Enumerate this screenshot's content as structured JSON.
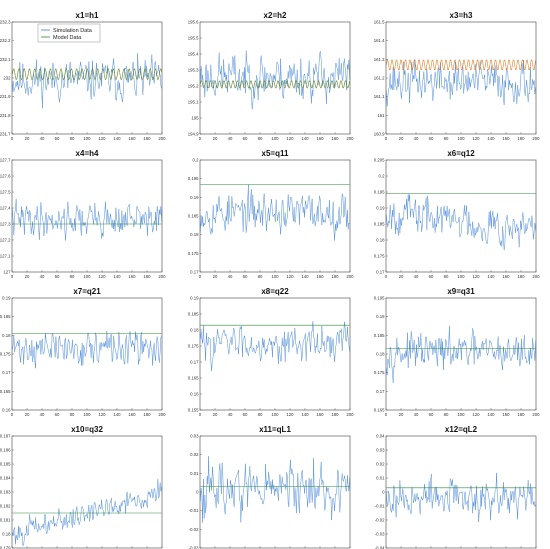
{
  "legend": {
    "entries": [
      {
        "label": "Simulation Data",
        "color": "#3b7fd4"
      },
      {
        "label": "Model Data",
        "color": "#2e8b3a"
      }
    ]
  },
  "colors": {
    "simulation": "#3b7fd4",
    "model": "#2e8b3a",
    "model_alt": "#e07a1f",
    "axis": "#444444"
  },
  "chart_data": [
    {
      "type": "line",
      "title": "x1=h1",
      "xlabel": "",
      "ylabel": "",
      "xlim": [
        0,
        200
      ],
      "ylim": [
        231.7,
        232.3
      ],
      "x_ticks": [
        0,
        20,
        40,
        60,
        80,
        100,
        120,
        140,
        160,
        180,
        200
      ],
      "y_ticks": [
        231.7,
        231.8,
        231.9,
        232,
        232.1,
        232.2,
        232.3
      ],
      "y_tick_labels": [
        "231.7",
        "231.8",
        "231.9",
        "232",
        "232.1",
        "232.2",
        "232.3"
      ],
      "grid": false,
      "legend_position": "top-left",
      "series": [
        {
          "name": "Simulation Data",
          "kind": "noise",
          "center": 231.99,
          "spread": 0.09,
          "seed": 11,
          "points": 200
        },
        {
          "name": "Model Data",
          "kind": "oscillation",
          "center": 232.02,
          "amplitude": 0.03,
          "period": 7,
          "points": 200
        }
      ]
    },
    {
      "type": "line",
      "title": "x2=h2",
      "xlabel": "",
      "ylabel": "",
      "xlim": [
        0,
        200
      ],
      "ylim": [
        194.9,
        195.6
      ],
      "x_ticks": [
        0,
        20,
        40,
        60,
        80,
        100,
        120,
        140,
        160,
        180,
        200
      ],
      "y_ticks": [
        194.9,
        195,
        195.1,
        195.2,
        195.3,
        195.4,
        195.5,
        195.6
      ],
      "y_tick_labels": [
        "194.9",
        "195",
        "195.1",
        "195.2",
        "195.3",
        "195.4",
        "195.5",
        "195.6"
      ],
      "grid": false,
      "legend_position": "none",
      "series": [
        {
          "name": "Simulation Data",
          "kind": "noise",
          "center": 195.26,
          "spread": 0.12,
          "seed": 23,
          "points": 200
        },
        {
          "name": "Model Data",
          "kind": "oscillation",
          "center": 195.21,
          "amplitude": 0.025,
          "period": 6,
          "points": 200
        }
      ]
    },
    {
      "type": "line",
      "title": "x3=h3",
      "xlabel": "",
      "ylabel": "",
      "xlim": [
        0,
        200
      ],
      "ylim": [
        160.9,
        161.5
      ],
      "x_ticks": [
        0,
        20,
        40,
        60,
        80,
        100,
        120,
        140,
        160,
        180,
        200
      ],
      "y_ticks": [
        160.9,
        161,
        161.1,
        161.2,
        161.3,
        161.4,
        161.5
      ],
      "y_tick_labels": [
        "160.9",
        "161",
        "161.1",
        "161.2",
        "161.3",
        "161.4",
        "161.5"
      ],
      "grid": false,
      "legend_position": "none",
      "series": [
        {
          "name": "Simulation Data",
          "kind": "noise",
          "center": 161.18,
          "spread": 0.09,
          "seed": 37,
          "points": 200
        },
        {
          "name": "Model Data",
          "kind": "oscillation",
          "center": 161.27,
          "amplitude": 0.03,
          "period": 6,
          "points": 200,
          "alt_color": true
        }
      ]
    },
    {
      "type": "line",
      "title": "x4=h4",
      "xlabel": "",
      "ylabel": "",
      "xlim": [
        0,
        200
      ],
      "ylim": [
        127,
        127.7
      ],
      "x_ticks": [
        0,
        20,
        40,
        60,
        80,
        100,
        120,
        140,
        160,
        180,
        200
      ],
      "y_ticks": [
        127,
        127.1,
        127.2,
        127.3,
        127.4,
        127.5,
        127.6,
        127.7
      ],
      "y_tick_labels": [
        "127",
        "127.1",
        "127.2",
        "127.3",
        "127.4",
        "127.5",
        "127.6",
        "127.7"
      ],
      "grid": false,
      "legend_position": "none",
      "series": [
        {
          "name": "Simulation Data",
          "kind": "noise",
          "center": 127.33,
          "spread": 0.09,
          "seed": 41,
          "points": 200
        },
        {
          "name": "Model Data",
          "kind": "flat",
          "value": 127.3,
          "points": 200
        }
      ]
    },
    {
      "type": "line",
      "title": "x5=q11",
      "xlabel": "",
      "ylabel": "",
      "xlim": [
        0,
        200
      ],
      "ylim": [
        0.17,
        0.2
      ],
      "x_ticks": [
        0,
        20,
        40,
        60,
        80,
        100,
        120,
        140,
        160,
        180,
        200
      ],
      "y_ticks": [
        0.17,
        0.175,
        0.18,
        0.185,
        0.19,
        0.195,
        0.2
      ],
      "y_tick_labels": [
        "0.17",
        "0.175",
        "0.18",
        "0.185",
        "0.19",
        "0.195",
        "0.2"
      ],
      "grid": false,
      "legend_position": "none",
      "series": [
        {
          "name": "Simulation Data",
          "kind": "noise",
          "center": 0.186,
          "spread": 0.0045,
          "seed": 53,
          "points": 200
        },
        {
          "name": "Model Data",
          "kind": "flat",
          "value": 0.1935,
          "points": 200
        }
      ]
    },
    {
      "type": "line",
      "title": "x6=q12",
      "xlabel": "",
      "ylabel": "",
      "xlim": [
        0,
        200
      ],
      "ylim": [
        0.17,
        0.205
      ],
      "x_ticks": [
        0,
        20,
        40,
        60,
        80,
        100,
        120,
        140,
        160,
        180,
        200
      ],
      "y_ticks": [
        0.17,
        0.175,
        0.18,
        0.185,
        0.19,
        0.195,
        0.2,
        0.205
      ],
      "y_tick_labels": [
        "0.17",
        "0.175",
        "0.18",
        "0.185",
        "0.19",
        "0.195",
        "0.2",
        "0.205"
      ],
      "grid": false,
      "legend_position": "none",
      "series": [
        {
          "name": "Simulation Data",
          "kind": "noise",
          "center": 0.186,
          "spread": 0.005,
          "seed": 67,
          "points": 200,
          "trend": -0.006
        },
        {
          "name": "Model Data",
          "kind": "flat",
          "value": 0.1945,
          "points": 200
        }
      ]
    },
    {
      "type": "line",
      "title": "x7=q21",
      "xlabel": "",
      "ylabel": "",
      "xlim": [
        0,
        200
      ],
      "ylim": [
        0.16,
        0.19
      ],
      "x_ticks": [
        0,
        20,
        40,
        60,
        80,
        100,
        120,
        140,
        160,
        180,
        200
      ],
      "y_ticks": [
        0.16,
        0.165,
        0.17,
        0.175,
        0.18,
        0.185,
        0.19
      ],
      "y_tick_labels": [
        "0.16",
        "0.165",
        "0.17",
        "0.175",
        "0.18",
        "0.185",
        "0.19"
      ],
      "grid": false,
      "legend_position": "none",
      "series": [
        {
          "name": "Simulation Data",
          "kind": "noise",
          "center": 0.1765,
          "spread": 0.0038,
          "seed": 71,
          "points": 200
        },
        {
          "name": "Model Data",
          "kind": "flat",
          "value": 0.1805,
          "points": 200
        }
      ]
    },
    {
      "type": "line",
      "title": "x8=q22",
      "xlabel": "",
      "ylabel": "",
      "xlim": [
        0,
        200
      ],
      "ylim": [
        0.155,
        0.19
      ],
      "x_ticks": [
        0,
        20,
        40,
        60,
        80,
        100,
        120,
        140,
        160,
        180,
        200
      ],
      "y_ticks": [
        0.155,
        0.16,
        0.165,
        0.17,
        0.175,
        0.18,
        0.185,
        0.19
      ],
      "y_tick_labels": [
        "0.155",
        "0.16",
        "0.165",
        "0.17",
        "0.175",
        "0.18",
        "0.185",
        "0.19"
      ],
      "grid": false,
      "legend_position": "none",
      "series": [
        {
          "name": "Simulation Data",
          "kind": "noise",
          "center": 0.176,
          "spread": 0.0045,
          "seed": 83,
          "points": 200
        },
        {
          "name": "Model Data",
          "kind": "flat",
          "value": 0.1815,
          "points": 200
        }
      ]
    },
    {
      "type": "line",
      "title": "x9=q31",
      "xlabel": "",
      "ylabel": "",
      "xlim": [
        0,
        200
      ],
      "ylim": [
        0.165,
        0.195
      ],
      "x_ticks": [
        0,
        20,
        40,
        60,
        80,
        100,
        120,
        140,
        160,
        180,
        200
      ],
      "y_ticks": [
        0.165,
        0.17,
        0.175,
        0.18,
        0.185,
        0.19,
        0.195
      ],
      "y_tick_labels": [
        "0.165",
        "0.17",
        "0.175",
        "0.18",
        "0.185",
        "0.19",
        "0.195"
      ],
      "grid": false,
      "legend_position": "none",
      "series": [
        {
          "name": "Simulation Data",
          "kind": "noise",
          "center": 0.1805,
          "spread": 0.004,
          "seed": 97,
          "points": 200
        },
        {
          "name": "Model Data",
          "kind": "flat",
          "value": 0.1815,
          "points": 200
        }
      ]
    },
    {
      "type": "line",
      "title": "x10=q32",
      "xlabel": "",
      "ylabel": "",
      "xlim": [
        0,
        200
      ],
      "ylim": [
        0.179,
        0.187
      ],
      "x_ticks": [
        0,
        20,
        40,
        60,
        80,
        100,
        120,
        140,
        160,
        180,
        200
      ],
      "y_ticks": [
        0.179,
        0.18,
        0.181,
        0.182,
        0.183,
        0.184,
        0.185,
        0.186,
        0.187
      ],
      "y_tick_labels": [
        "0.179",
        "0.18",
        "0.181",
        "0.182",
        "0.183",
        "0.184",
        "0.185",
        "0.186",
        "0.187"
      ],
      "grid": false,
      "legend_position": "none",
      "series": [
        {
          "name": "Simulation Data",
          "kind": "noise",
          "center": 0.1815,
          "spread": 0.0007,
          "seed": 101,
          "points": 200,
          "trend": 0.003
        },
        {
          "name": "Model Data",
          "kind": "flat",
          "value": 0.1815,
          "points": 200
        }
      ]
    },
    {
      "type": "line",
      "title": "x11=qL1",
      "xlabel": "",
      "ylabel": "",
      "xlim": [
        0,
        200
      ],
      "ylim": [
        -0.03,
        0.03
      ],
      "x_ticks": [
        0,
        20,
        40,
        60,
        80,
        100,
        120,
        140,
        160,
        180,
        200
      ],
      "y_ticks": [
        -0.03,
        -0.02,
        -0.01,
        0,
        0.01,
        0.02,
        0.03
      ],
      "y_tick_labels": [
        "-0.03",
        "-0.02",
        "-0.01",
        "0",
        "0.01",
        "0.02",
        "0.03"
      ],
      "grid": false,
      "legend_position": "none",
      "series": [
        {
          "name": "Simulation Data",
          "kind": "noise",
          "center": 0.002,
          "spread": 0.012,
          "seed": 113,
          "points": 200
        },
        {
          "name": "Model Data",
          "kind": "flat",
          "value": 0.003,
          "points": 200
        }
      ]
    },
    {
      "type": "line",
      "title": "x12=qL2",
      "xlabel": "",
      "ylabel": "",
      "xlim": [
        0,
        200
      ],
      "ylim": [
        -0.04,
        0.04
      ],
      "x_ticks": [
        0,
        20,
        40,
        60,
        80,
        100,
        120,
        140,
        160,
        180,
        200
      ],
      "y_ticks": [
        -0.04,
        -0.03,
        -0.02,
        -0.01,
        0,
        0.01,
        0.02,
        0.03,
        0.04
      ],
      "y_tick_labels": [
        "-0.04",
        "-0.03",
        "-0.02",
        "-0.01",
        "0",
        "0.01",
        "0.02",
        "0.03",
        "0.04"
      ],
      "grid": false,
      "legend_position": "none",
      "series": [
        {
          "name": "Simulation Data",
          "kind": "noise",
          "center": -0.004,
          "spread": 0.011,
          "seed": 127,
          "points": 200
        },
        {
          "name": "Model Data",
          "kind": "flat",
          "value": 0.003,
          "points": 200
        }
      ]
    }
  ]
}
